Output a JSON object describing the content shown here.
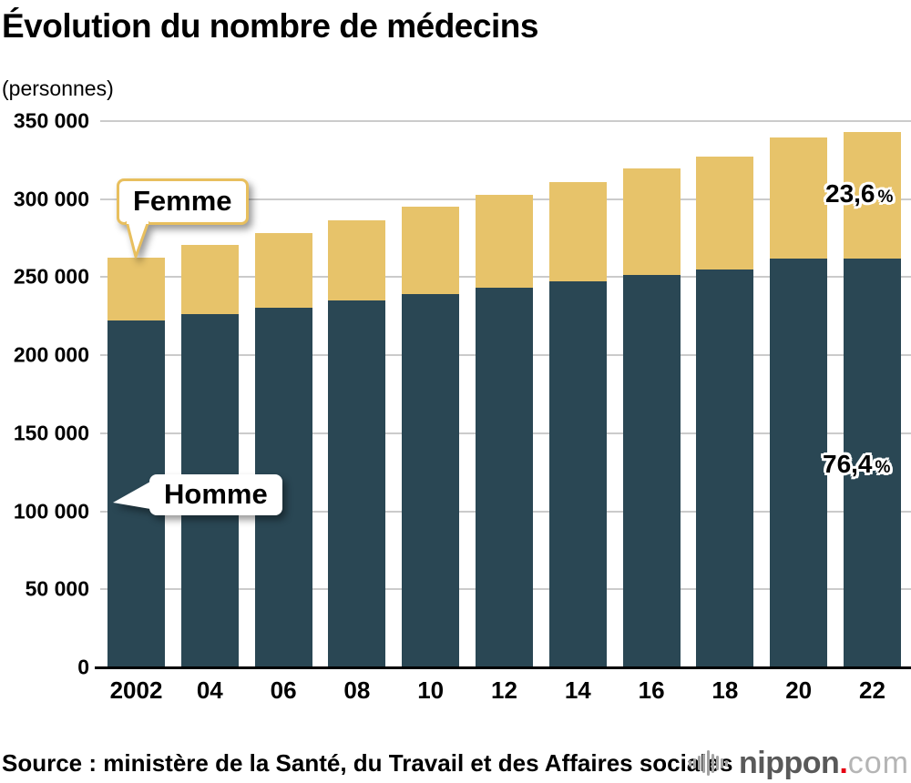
{
  "header": {
    "title": "Évolution du nombre de médecins",
    "unit_label": "(personnes)"
  },
  "chart_data": {
    "type": "bar",
    "stacked": true,
    "title": "Évolution du nombre de médecins",
    "ylabel": "(personnes)",
    "categories": [
      "2002",
      "2004",
      "2006",
      "2008",
      "2010",
      "2012",
      "2014",
      "2016",
      "2018",
      "2020",
      "2022"
    ],
    "x_tick_labels": [
      "2002",
      "04",
      "06",
      "08",
      "10",
      "12",
      "14",
      "16",
      "18",
      "20",
      "22"
    ],
    "series": [
      {
        "name": "Homme",
        "color": "#2a4754",
        "values": [
          222000,
          226500,
          230500,
          235000,
          239000,
          243500,
          247500,
          251500,
          255000,
          262000,
          262100
        ]
      },
      {
        "name": "Femme",
        "color": "#e7c36a",
        "values": [
          40700,
          44000,
          47500,
          51500,
          56000,
          59500,
          63500,
          68000,
          72200,
          77500,
          81200
        ]
      }
    ],
    "totals": [
      262700,
      270500,
      278000,
      286500,
      295000,
      303000,
      311000,
      319500,
      327200,
      339500,
      343300
    ],
    "ylim": [
      0,
      350000
    ],
    "grid": "horizontal",
    "gridline_color": "#cbcbcb",
    "y_ticks": [
      {
        "value": 350000,
        "label": "350 000"
      },
      {
        "value": 300000,
        "label": "300 000"
      },
      {
        "value": 250000,
        "label": "250 000"
      },
      {
        "value": 200000,
        "label": "200 000"
      },
      {
        "value": 150000,
        "label": "150 000"
      },
      {
        "value": 100000,
        "label": "100 000"
      },
      {
        "value": 50000,
        "label": "50 000"
      },
      {
        "value": 0,
        "label": "0"
      }
    ],
    "annotations": [
      {
        "series": "Femme",
        "category": "2022",
        "text": "23,6",
        "suffix": "%"
      },
      {
        "series": "Homme",
        "category": "2022",
        "text": "76,4",
        "suffix": "%"
      }
    ],
    "legend": "callouts"
  },
  "callouts": {
    "femme_label": "Femme",
    "homme_label": "Homme"
  },
  "footer": {
    "source": "Source : ministère de la Santé, du Travail et des Affaires sociales",
    "logo": {
      "brand": "nippon",
      "dot": ".",
      "tld": "com"
    }
  }
}
